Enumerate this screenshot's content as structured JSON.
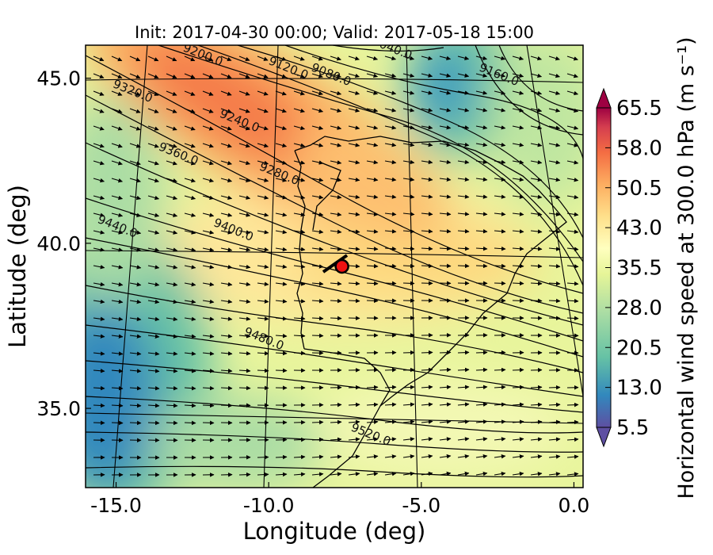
{
  "figure": {
    "title": "Init: 2017-04-30 00:00; Valid: 2017-05-18 15:00",
    "xlabel": "Longitude (deg)",
    "ylabel": "Latitude (deg)",
    "colorbar_label": "Horizontal wind speed at 300.0 hPa (m s⁻¹)"
  },
  "chart_data": {
    "type": "heatmap",
    "title": "Init: 2017-04-30 00:00; Valid: 2017-05-18 15:00",
    "xlabel": "Longitude (deg)",
    "ylabel": "Latitude (deg)",
    "xlim": [
      -16.0,
      0.3
    ],
    "ylim": [
      32.6,
      46.0
    ],
    "x_ticks": [
      -15.0,
      -10.0,
      -5.0,
      0.0
    ],
    "x_tick_labels": [
      "-15.0",
      "-10.0",
      "-5.0",
      "0.0"
    ],
    "y_ticks": [
      35.0,
      40.0,
      45.0
    ],
    "y_tick_labels": [
      "35.0",
      "40.0",
      "45.0"
    ],
    "grid": true,
    "colorbar": {
      "label": "Horizontal wind speed at 300.0 hPa (m s⁻¹)",
      "min": 5.5,
      "max": 65.5,
      "tick_values": [
        5.5,
        13.0,
        20.5,
        28.0,
        35.5,
        43.0,
        50.5,
        58.0,
        65.5
      ],
      "tick_labels": [
        "5.5",
        "13.0",
        "20.5",
        "28.0",
        "35.5",
        "43.0",
        "50.5",
        "58.0",
        "65.5"
      ],
      "colors": [
        "#5e4fa2",
        "#3288bd",
        "#66c2a5",
        "#abdda4",
        "#e6f598",
        "#ffffbf",
        "#fee08b",
        "#fdae61",
        "#f46d43",
        "#d53e4f",
        "#9e0142"
      ],
      "extend": "both"
    },
    "contours": {
      "quantity": "geopotential height at 300 hPa",
      "levels_labeled": [
        {
          "label": "9040.0",
          "lon": -6.0,
          "lat": 45.8
        },
        {
          "label": "9080.0",
          "lon": -8.0,
          "lat": 45.0
        },
        {
          "label": "9120.0",
          "lon": -9.4,
          "lat": 45.2
        },
        {
          "label": "9160.0",
          "lon": -2.5,
          "lat": 45.0
        },
        {
          "label": "9200.0",
          "lon": -12.2,
          "lat": 45.6
        },
        {
          "label": "9240.0",
          "lon": -11.0,
          "lat": 43.6
        },
        {
          "label": "9280.0",
          "lon": -9.7,
          "lat": 42.0
        },
        {
          "label": "9320.0",
          "lon": -14.5,
          "lat": 44.5
        },
        {
          "label": "9360.0",
          "lon": -13.0,
          "lat": 42.6
        },
        {
          "label": "9400.0",
          "lon": -11.2,
          "lat": 40.3
        },
        {
          "label": "9440.0",
          "lon": -15.0,
          "lat": 40.4
        },
        {
          "label": "9480.0",
          "lon": -10.2,
          "lat": 37.0
        },
        {
          "label": "9520.0",
          "lon": -6.7,
          "lat": 34.1
        }
      ]
    },
    "marker": {
      "lon": -7.6,
      "lat": 39.3,
      "color": "#ee1111"
    },
    "wind_vectors": {
      "direction": "predominantly westerly to west-north-westerly",
      "grid": "regular"
    }
  }
}
